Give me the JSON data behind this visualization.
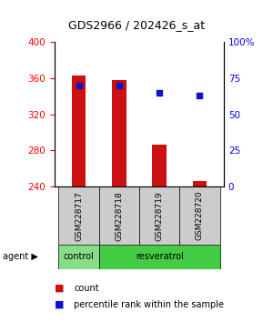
{
  "title": "GDS2966 / 202426_s_at",
  "samples": [
    "GSM228717",
    "GSM228718",
    "GSM228719",
    "GSM228720"
  ],
  "bar_values": [
    363,
    358,
    287,
    246
  ],
  "bar_base": 240,
  "percentile_values": [
    70,
    70,
    65,
    63
  ],
  "left_ylim": [
    240,
    400
  ],
  "left_yticks": [
    240,
    280,
    320,
    360,
    400
  ],
  "right_ylim": [
    0,
    100
  ],
  "right_yticks": [
    0,
    25,
    50,
    75,
    100
  ],
  "right_yticklabels": [
    "0",
    "25",
    "50",
    "75",
    "100%"
  ],
  "bar_color": "#cc1111",
  "percentile_color": "#1111cc",
  "sample_box_color": "#cccccc",
  "ctrl_color": "#88dd88",
  "resv_color": "#44cc44",
  "bar_width": 0.35,
  "x_positions": [
    0,
    1,
    2,
    3
  ]
}
